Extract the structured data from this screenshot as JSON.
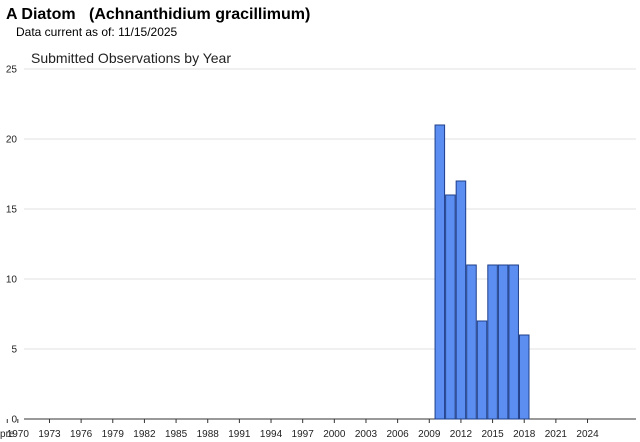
{
  "header": {
    "common_name": "A Diatom",
    "scientific_name": "(Achnanthidium gracillimum)",
    "data_current_label": "Data current as of:",
    "data_current_date": "11/15/2025"
  },
  "chart_data": {
    "type": "bar",
    "title": "Submitted Observations by Year",
    "xlabel": "",
    "ylabel": "",
    "ylim": [
      0,
      25
    ],
    "y_ticks": [
      0,
      5,
      10,
      15,
      20,
      25
    ],
    "x_tick_labels": [
      "pre",
      "1970",
      "1973",
      "1976",
      "1979",
      "1982",
      "1985",
      "1988",
      "1991",
      "1994",
      "1997",
      "2000",
      "2003",
      "2006",
      "2009",
      "2012",
      "2015",
      "2018",
      "2021",
      "2024"
    ],
    "categories": [
      "2010",
      "2011",
      "2012",
      "2013",
      "2014",
      "2015",
      "2016",
      "2017",
      "2018"
    ],
    "values": [
      21,
      16,
      17,
      11,
      7,
      11,
      11,
      11,
      6
    ],
    "colors": {
      "bar_fill": "#5b8ef0",
      "bar_stroke": "#1f3f8a",
      "grid": "#e0e0e0"
    },
    "grid": true
  }
}
